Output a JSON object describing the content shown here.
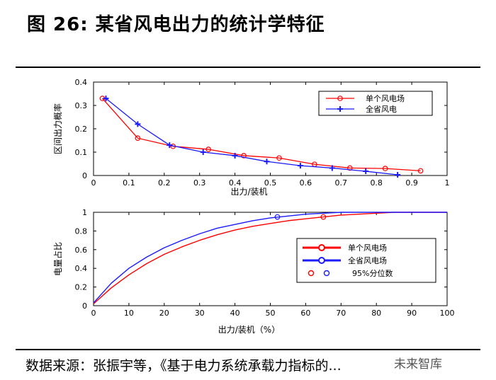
{
  "figure": {
    "title": "图 26: 某省风电出力的统计学特征",
    "source": "数据来源：张振宇等，《基于电力系统承载力指标的...",
    "watermark": "未来智库"
  },
  "colors": {
    "red": "#ff0000",
    "blue": "#1a1aff",
    "axis": "#000000"
  },
  "chart_data": [
    {
      "type": "line",
      "xlabel": "出力/装机",
      "ylabel": "区间出力概率",
      "xlim": [
        0,
        1
      ],
      "ylim": [
        0,
        0.4
      ],
      "xticks": [
        "0",
        "0.1",
        "0.2",
        "0.3",
        "0.4",
        "0.5",
        "0.6",
        "0.7",
        "0.8",
        "0.9",
        "1"
      ],
      "yticks": [
        "0",
        "0.1",
        "0.2",
        "0.3",
        "0.4"
      ],
      "legend_position": "top-right",
      "grid": false,
      "series": [
        {
          "name": "单个风电场",
          "color": "#ff0000",
          "marker": "circle",
          "x": [
            0.025,
            0.125,
            0.225,
            0.325,
            0.425,
            0.525,
            0.625,
            0.725,
            0.825,
            0.925
          ],
          "y": [
            0.33,
            0.16,
            0.125,
            0.112,
            0.085,
            0.075,
            0.048,
            0.032,
            0.03,
            0.02
          ]
        },
        {
          "name": "全省风电",
          "color": "#1a1aff",
          "marker": "plus",
          "x": [
            0.035,
            0.125,
            0.215,
            0.31,
            0.4,
            0.49,
            0.585,
            0.675,
            0.77,
            0.86
          ],
          "y": [
            0.33,
            0.22,
            0.13,
            0.1,
            0.085,
            0.06,
            0.042,
            0.032,
            0.018,
            0.003
          ]
        }
      ]
    },
    {
      "type": "line",
      "xlabel": "出力/装机（%）",
      "ylabel": "电量占比",
      "xlim": [
        0,
        100
      ],
      "ylim": [
        0,
        1
      ],
      "xticks": [
        "0",
        "10",
        "20",
        "30",
        "40",
        "50",
        "60",
        "70",
        "80",
        "90",
        "100"
      ],
      "yticks": [
        "0",
        "0.2",
        "0.4",
        "0.6",
        "0.8",
        "1"
      ],
      "legend_position": "right",
      "grid": false,
      "series": [
        {
          "name": "单个风电场",
          "color": "#ff0000",
          "x": [
            0,
            5,
            10,
            15,
            20,
            25,
            30,
            35,
            40,
            45,
            50,
            55,
            60,
            65,
            70,
            75,
            80,
            85,
            90,
            95,
            100
          ],
          "y": [
            0.02,
            0.19,
            0.33,
            0.45,
            0.55,
            0.63,
            0.7,
            0.76,
            0.81,
            0.85,
            0.88,
            0.91,
            0.93,
            0.95,
            0.97,
            0.98,
            0.99,
            1,
            1,
            1,
            1
          ]
        },
        {
          "name": "全省风电场",
          "color": "#1a1aff",
          "x": [
            0,
            5,
            10,
            15,
            20,
            25,
            30,
            35,
            40,
            45,
            50,
            55,
            60,
            65,
            70,
            75,
            80,
            85,
            90,
            95,
            100
          ],
          "y": [
            0.03,
            0.24,
            0.4,
            0.52,
            0.62,
            0.7,
            0.77,
            0.83,
            0.87,
            0.91,
            0.94,
            0.96,
            0.98,
            0.99,
            1,
            1,
            1,
            1,
            1,
            1,
            1
          ]
        }
      ],
      "percentile_markers": [
        {
          "series": "单个风电场",
          "x": 65,
          "y": 0.95,
          "color": "#ff0000"
        },
        {
          "series": "全省风电场",
          "x": 52,
          "y": 0.95,
          "color": "#1a1aff"
        }
      ],
      "percentile_legend_label": "95%分位数"
    }
  ]
}
